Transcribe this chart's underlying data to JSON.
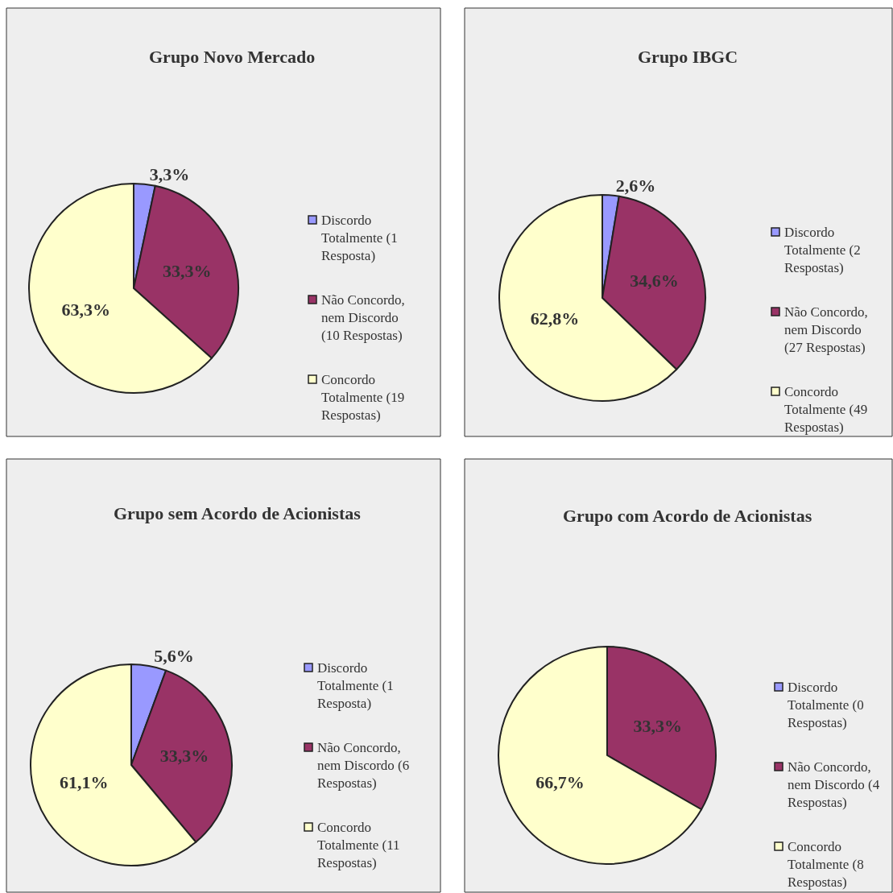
{
  "chart_data": [
    {
      "type": "pie",
      "title": "Grupo Novo Mercado",
      "categories": [
        "Discordo Totalmente (1 Resposta)",
        "Não Concordo, nem Discordo (10 Respostas)",
        "Concordo Totalmente (19 Respostas)"
      ],
      "values": [
        3.3,
        33.3,
        63.3
      ],
      "colors": [
        "#9999ff",
        "#993366",
        "#ffffcc"
      ],
      "value_labels": [
        "3,3%",
        "33,3%",
        "63,3%"
      ],
      "legend": "right"
    },
    {
      "type": "pie",
      "title": "Grupo IBGC",
      "categories": [
        "Discordo Totalmente (2 Respostas)",
        "Não Concordo, nem Discordo (27 Respostas)",
        "Concordo Totalmente (49 Respostas)"
      ],
      "values": [
        2.6,
        34.6,
        62.8
      ],
      "colors": [
        "#9999ff",
        "#993366",
        "#ffffcc"
      ],
      "value_labels": [
        "2,6%",
        "34,6%",
        "62,8%"
      ],
      "legend": "right"
    },
    {
      "type": "pie",
      "title": "Grupo sem Acordo de Acionistas",
      "categories": [
        "Discordo Totalmente (1 Resposta)",
        "Não Concordo, nem Discordo (6 Respostas)",
        "Concordo Totalmente (11 Respostas)"
      ],
      "values": [
        5.6,
        33.3,
        61.1
      ],
      "colors": [
        "#9999ff",
        "#993366",
        "#ffffcc"
      ],
      "value_labels": [
        "5,6%",
        "33,3%",
        "61,1%"
      ],
      "legend": "right"
    },
    {
      "type": "pie",
      "title": "Grupo com Acordo de Acionistas",
      "categories": [
        "Discordo Totalmente (0 Respostas)",
        "Não Concordo, nem Discordo (4 Respostas)",
        "Concordo Totalmente (8 Respostas)"
      ],
      "values": [
        0,
        33.3,
        66.7
      ],
      "colors": [
        "#9999ff",
        "#993366",
        "#ffffcc"
      ],
      "value_labels": [
        null,
        "33,3%",
        "66,7%"
      ],
      "legend": "right"
    }
  ]
}
